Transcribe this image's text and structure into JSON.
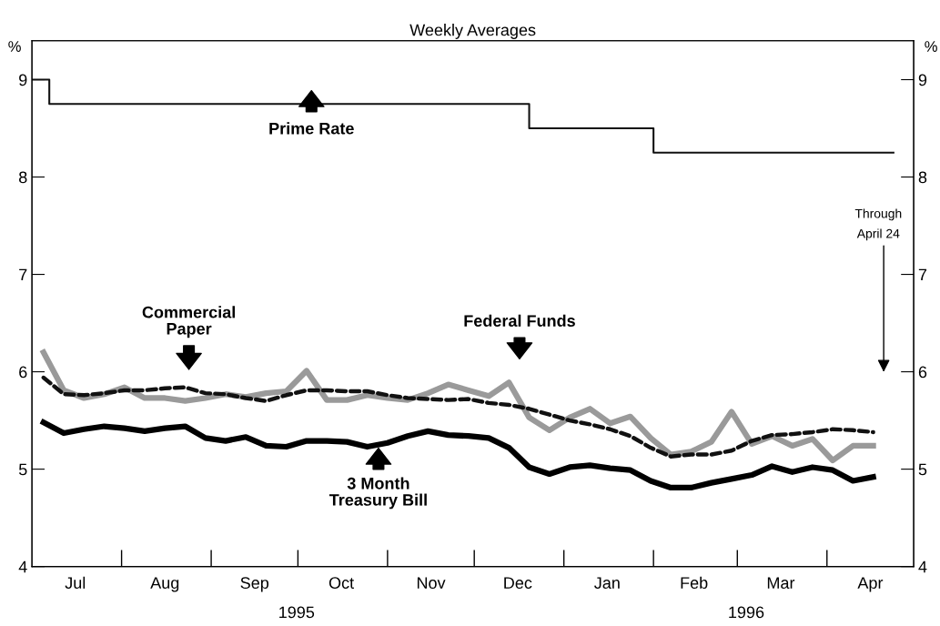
{
  "chart_data": {
    "type": "line",
    "title": "Weekly Averages",
    "x": [
      "1995-07-05",
      "1995-07-12",
      "1995-07-19",
      "1995-07-26",
      "1995-08-02",
      "1995-08-09",
      "1995-08-16",
      "1995-08-23",
      "1995-08-30",
      "1995-09-06",
      "1995-09-13",
      "1995-09-20",
      "1995-09-27",
      "1995-10-04",
      "1995-10-11",
      "1995-10-18",
      "1995-10-25",
      "1995-11-01",
      "1995-11-08",
      "1995-11-15",
      "1995-11-22",
      "1995-11-29",
      "1995-12-06",
      "1995-12-13",
      "1995-12-20",
      "1995-12-27",
      "1996-01-03",
      "1996-01-10",
      "1996-01-17",
      "1996-01-24",
      "1996-01-31",
      "1996-02-07",
      "1996-02-14",
      "1996-02-21",
      "1996-02-28",
      "1996-03-06",
      "1996-03-13",
      "1996-03-20",
      "1996-03-27",
      "1996-04-03",
      "1996-04-10",
      "1996-04-17"
    ],
    "series": [
      {
        "type": "step",
        "color": "#111111",
        "line_style": "solid",
        "x": [
          "1995-07-01",
          "1995-07-07",
          "1995-12-20",
          "1996-02-01",
          "1996-04-24"
        ],
        "values": [
          9,
          8.75,
          8.5,
          8.25,
          8.25
        ]
      },
      {
        "color": "#9a9a9a",
        "line_style": "solid",
        "values": [
          6.2,
          5.81,
          5.73,
          5.77,
          5.84,
          5.73,
          5.73,
          5.7,
          5.73,
          5.77,
          5.74,
          5.78,
          5.8,
          6.01,
          5.71,
          5.71,
          5.76,
          5.73,
          5.71,
          5.78,
          5.87,
          5.81,
          5.75,
          5.89,
          5.53,
          5.4,
          5.53,
          5.62,
          5.47,
          5.54,
          5.32,
          5.15,
          5.18,
          5.28,
          5.59,
          5.26,
          5.34,
          5.24,
          5.31,
          5.09,
          5.24,
          5.24
        ]
      },
      {
        "color": "#111111",
        "line_style": "dashed",
        "values": [
          5.94,
          5.77,
          5.76,
          5.78,
          5.81,
          5.81,
          5.83,
          5.84,
          5.78,
          5.77,
          5.73,
          5.7,
          5.76,
          5.81,
          5.81,
          5.8,
          5.8,
          5.76,
          5.73,
          5.72,
          5.71,
          5.72,
          5.68,
          5.66,
          5.62,
          5.56,
          5.5,
          5.46,
          5.41,
          5.34,
          5.22,
          5.13,
          5.15,
          5.15,
          5.19,
          5.29,
          5.35,
          5.36,
          5.38,
          5.41,
          5.4,
          5.38
        ]
      },
      {
        "color": "#000000",
        "line_style": "solid",
        "values": [
          5.48,
          5.37,
          5.41,
          5.44,
          5.42,
          5.39,
          5.42,
          5.44,
          5.32,
          5.29,
          5.33,
          5.24,
          5.23,
          5.29,
          5.29,
          5.28,
          5.23,
          5.27,
          5.34,
          5.39,
          5.35,
          5.34,
          5.32,
          5.22,
          5.02,
          4.95,
          5.02,
          5.04,
          5.01,
          4.99,
          4.88,
          4.81,
          4.81,
          4.86,
          4.9,
          4.94,
          5.03,
          4.97,
          5.02,
          4.99,
          4.88,
          4.92
        ]
      }
    ],
    "ylabel": "%",
    "y2label": "%",
    "xlim": [
      "1995-07-01",
      "1996-05-01"
    ],
    "xticks": [
      {
        "value": "1995-07-16",
        "label": "Jul"
      },
      {
        "value": "1995-08-16",
        "label": "Aug"
      },
      {
        "value": "1995-09-16",
        "label": "Sep"
      },
      {
        "value": "1995-10-16",
        "label": "Oct"
      },
      {
        "value": "1995-11-16",
        "label": "Nov"
      },
      {
        "value": "1995-12-16",
        "label": "Dec"
      },
      {
        "value": "1996-01-16",
        "label": "Jan"
      },
      {
        "value": "1996-02-15",
        "label": "Feb"
      },
      {
        "value": "1996-03-16",
        "label": "Mar"
      },
      {
        "value": "1996-04-16",
        "label": "Apr"
      }
    ],
    "ylim": [
      4,
      9.4
    ],
    "yticks": [
      4,
      5,
      6,
      7,
      8,
      9
    ],
    "y2lim": [
      4,
      9.4
    ],
    "y2ticks": [
      4,
      5,
      6,
      7,
      8,
      9
    ],
    "annotations": [
      "Prime Rate",
      "Commercial\nPaper",
      "Federal Funds",
      "3 Month\nTreasury Bill",
      "Through\nApril 24",
      "1995",
      "1996"
    ],
    "grid": false,
    "legend": false
  }
}
